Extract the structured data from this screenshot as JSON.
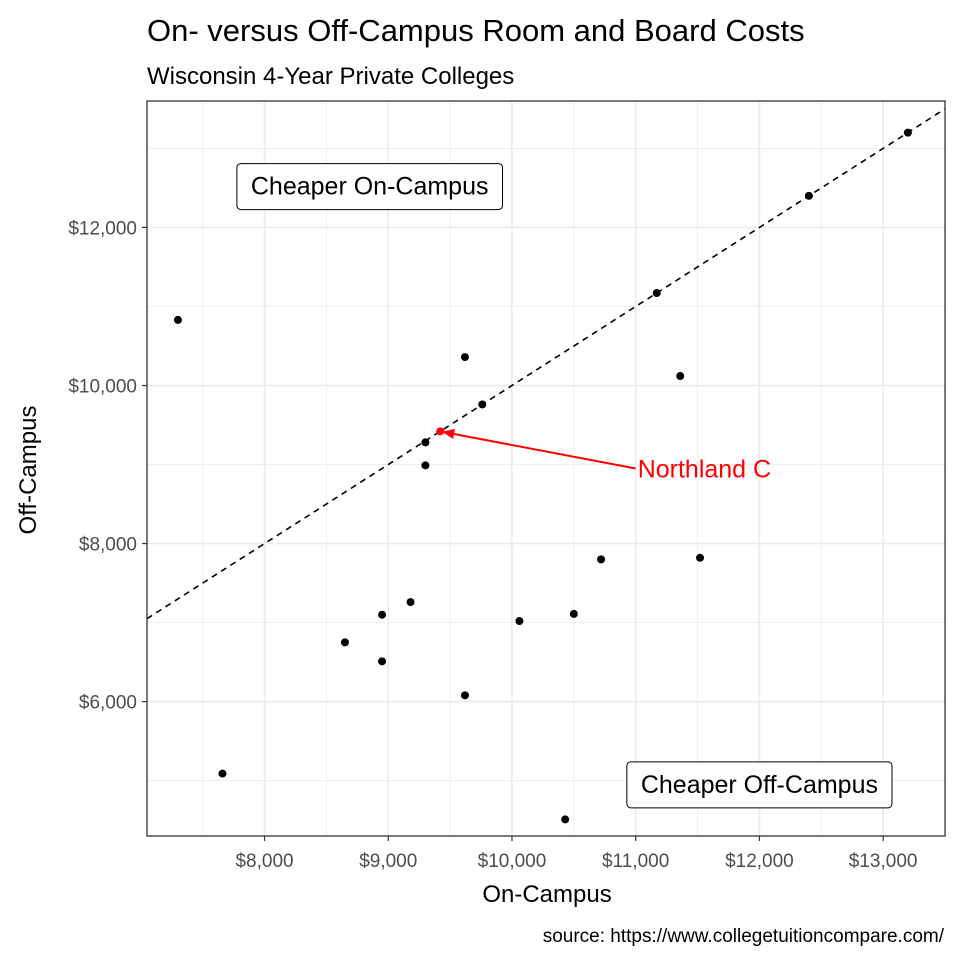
{
  "chart_data": {
    "type": "scatter",
    "title": "On- versus Off-Campus Room and Board Costs",
    "subtitle": "Wisconsin 4-Year Private Colleges",
    "xlabel": "On-Campus",
    "ylabel": "Off-Campus",
    "caption": "source: https://www.collegetuitioncompare.com/",
    "xlim": [
      7050,
      13500
    ],
    "ylim": [
      4300,
      13600
    ],
    "x_ticks": [
      8000,
      9000,
      10000,
      11000,
      12000,
      13000
    ],
    "x_tick_labels": [
      "$8,000",
      "$9,000",
      "$10,000",
      "$11,000",
      "$12,000",
      "$13,000"
    ],
    "y_ticks": [
      6000,
      8000,
      10000,
      12000
    ],
    "y_tick_labels": [
      "$6,000",
      "$8,000",
      "$10,000",
      "$12,000"
    ],
    "grid": true,
    "reference_line": {
      "slope": 1,
      "intercept": 0,
      "style": "dashed"
    },
    "points": [
      {
        "x": 7300,
        "y": 10830
      },
      {
        "x": 7660,
        "y": 5090
      },
      {
        "x": 8650,
        "y": 6750
      },
      {
        "x": 8950,
        "y": 7100
      },
      {
        "x": 8950,
        "y": 6510
      },
      {
        "x": 9180,
        "y": 7260
      },
      {
        "x": 9300,
        "y": 9280
      },
      {
        "x": 9300,
        "y": 8990
      },
      {
        "x": 9620,
        "y": 10360
      },
      {
        "x": 9620,
        "y": 6080
      },
      {
        "x": 9760,
        "y": 9760
      },
      {
        "x": 10060,
        "y": 7020
      },
      {
        "x": 10430,
        "y": 4510
      },
      {
        "x": 10500,
        "y": 7110
      },
      {
        "x": 10720,
        "y": 7800
      },
      {
        "x": 11170,
        "y": 11170
      },
      {
        "x": 11360,
        "y": 10120
      },
      {
        "x": 11520,
        "y": 7820
      },
      {
        "x": 12400,
        "y": 12400
      },
      {
        "x": 13200,
        "y": 13200
      }
    ],
    "highlight": {
      "label": "Northland C",
      "x": 9420,
      "y": 9420,
      "label_x": 11000,
      "label_y": 8950,
      "color": "#ff0000"
    },
    "annotations": [
      {
        "text": "Cheaper On-Campus",
        "x": 8850,
        "y": 12530
      },
      {
        "text": "Cheaper Off-Campus",
        "x": 12000,
        "y": 4960
      }
    ],
    "colors": {
      "points": "#000000",
      "gridline": "#ebebeb",
      "panel_border": "#333333",
      "tick_label": "#4d4d4d"
    }
  }
}
